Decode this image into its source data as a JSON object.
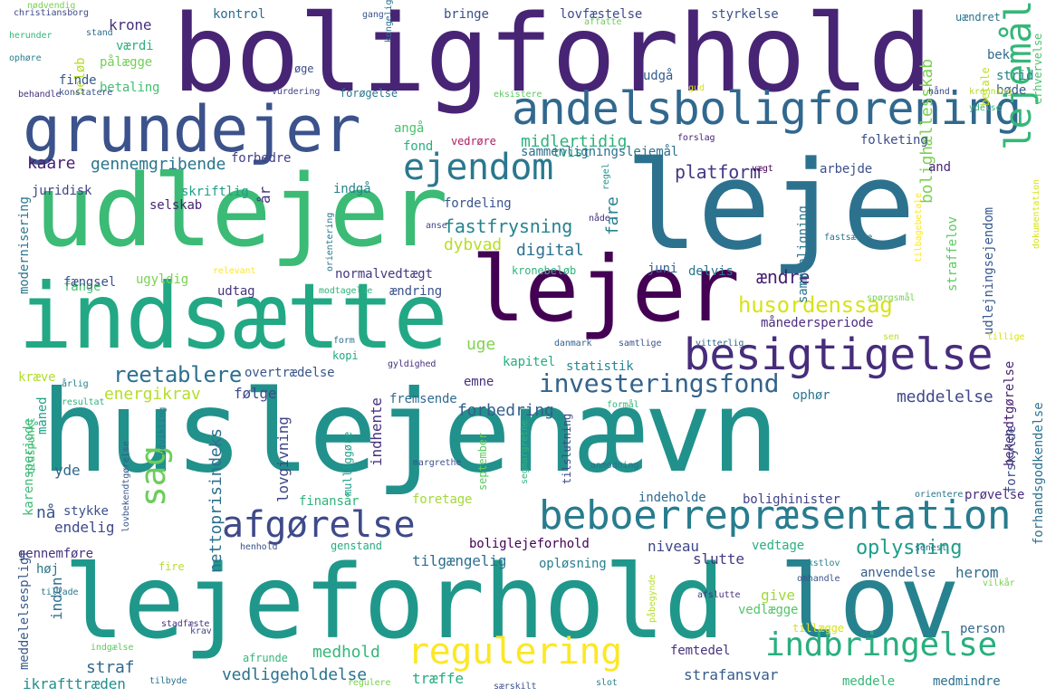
{
  "cloud": {
    "words": [
      {
        "text": "boligforhold",
        "color": "#482475"
      },
      {
        "text": "udlejer",
        "color": "#3bbb75"
      },
      {
        "text": "leje",
        "color": "#2c728e"
      },
      {
        "text": "huslejenævn",
        "color": "#21918c"
      },
      {
        "text": "indsætte",
        "color": "#22a884"
      },
      {
        "text": "lejer",
        "color": "#440154"
      },
      {
        "text": "lejeforhold",
        "color": "#1f988b"
      },
      {
        "text": "lov",
        "color": "#26828e"
      },
      {
        "text": "grundejer",
        "color": "#3b528b"
      },
      {
        "text": "andelsboligforening",
        "color": "#31688e"
      },
      {
        "text": "besigtigelse",
        "color": "#472d7b"
      },
      {
        "text": "beboerrepræsentation",
        "color": "#287c8e"
      },
      {
        "text": "afgørelse",
        "color": "#3e4a89"
      },
      {
        "text": "ejendom",
        "color": "#2a788e"
      },
      {
        "text": "lejemål",
        "color": "#35b779"
      },
      {
        "text": "regulering",
        "color": "#fde725"
      },
      {
        "text": "indbringelse",
        "color": "#29af7f"
      },
      {
        "text": "investeringsfond",
        "color": "#33638d"
      },
      {
        "text": "sag",
        "color": "#6ccd5a"
      },
      {
        "text": "husordenssag",
        "color": "#d8e219"
      },
      {
        "text": "reetablere",
        "color": "#2d708e"
      },
      {
        "text": "bolig",
        "color": "#482878"
      },
      {
        "text": "platform",
        "color": "#443a83"
      },
      {
        "text": "fastfrysning",
        "color": "#25848e"
      },
      {
        "text": "midlertidig",
        "color": "#2db27d"
      },
      {
        "text": "gennemgribende",
        "color": "#2a768e"
      },
      {
        "text": "digital",
        "color": "#2c718e"
      },
      {
        "text": "normalvedtægt",
        "color": "#443983"
      },
      {
        "text": "ændre",
        "color": "#482173"
      },
      {
        "text": "bolighællesskab",
        "color": "#7ad151"
      },
      {
        "text": "oplysning",
        "color": "#1f9e89"
      },
      {
        "text": "meddelelse",
        "color": "#3e4989"
      },
      {
        "text": "forbedring",
        "color": "#355f8d"
      },
      {
        "text": "energikrav",
        "color": "#b5de2b"
      },
      {
        "text": "overtrædelse",
        "color": "#39568c"
      },
      {
        "text": "juridisk",
        "color": "#414487"
      },
      {
        "text": "kaare",
        "color": "#481f70"
      },
      {
        "text": "tvist",
        "color": "#20a386"
      },
      {
        "text": "dybvad",
        "color": "#b8de29"
      },
      {
        "text": "fordeling",
        "color": "#3a548c"
      },
      {
        "text": "kapitel",
        "color": "#25ac82"
      },
      {
        "text": "statistik",
        "color": "#24878e"
      },
      {
        "text": "straf",
        "color": "#31688e"
      },
      {
        "text": "vedligeholdelse",
        "color": "#2c728e"
      },
      {
        "text": "medhold",
        "color": "#35b779"
      },
      {
        "text": "strafansvar",
        "color": "#365c8d"
      },
      {
        "text": "femtedel",
        "color": "#46327e"
      },
      {
        "text": "træffe",
        "color": "#26ad81"
      },
      {
        "text": "ikrafttræden",
        "color": "#218f8d"
      },
      {
        "text": "boliglejeforhold",
        "color": "#440154"
      },
      {
        "text": "tilgængelig",
        "color": "#2e6e8e"
      },
      {
        "text": "opløsning",
        "color": "#277f8e"
      },
      {
        "text": "niveau",
        "color": "#3f4788"
      },
      {
        "text": "vedtage",
        "color": "#2ab07f"
      },
      {
        "text": "slutte",
        "color": "#453781"
      },
      {
        "text": "anvendelse",
        "color": "#365d8d"
      },
      {
        "text": "herom",
        "color": "#2f6c8e"
      },
      {
        "text": "give",
        "color": "#9fda3a"
      },
      {
        "text": "vedlægge",
        "color": "#54c568"
      },
      {
        "text": "tillægge",
        "color": "#d5e21a"
      },
      {
        "text": "person",
        "color": "#31678e"
      },
      {
        "text": "bekendtgørelse",
        "color": "#482071"
      },
      {
        "text": "nettoprisindeks",
        "color": "#2e6f8e"
      },
      {
        "text": "lovgivning",
        "color": "#404688"
      },
      {
        "text": "indhente",
        "color": "#46337f"
      },
      {
        "text": "måned",
        "color": "#1fa287"
      },
      {
        "text": "yde",
        "color": "#31668e"
      },
      {
        "text": "stykke",
        "color": "#3b528b"
      },
      {
        "text": "nå",
        "color": "#39558c"
      },
      {
        "text": "endelig",
        "color": "#3e4a89"
      },
      {
        "text": "gennemføre",
        "color": "#46327e"
      },
      {
        "text": "høj",
        "color": "#2b748e"
      },
      {
        "text": "inden",
        "color": "#2d718e"
      },
      {
        "text": "fange",
        "color": "#4ac16d"
      },
      {
        "text": "følge",
        "color": "#3f4889"
      },
      {
        "text": "emne",
        "color": "#472f7d"
      },
      {
        "text": "ophør",
        "color": "#2b758e"
      },
      {
        "text": "forskylde",
        "color": "#3d4d8a"
      },
      {
        "text": "prøvelse",
        "color": "#472d7b"
      },
      {
        "text": "forhandsgodkendelse",
        "color": "#2c738e"
      },
      {
        "text": "indeholde",
        "color": "#306a8e"
      },
      {
        "text": "bolighinister",
        "color": "#414287"
      },
      {
        "text": "finansår",
        "color": "#2eb37c"
      },
      {
        "text": "foretage",
        "color": "#a2da37"
      },
      {
        "text": "genstand",
        "color": "#27ad81"
      },
      {
        "text": "fremsende",
        "color": "#2f6c8e"
      },
      {
        "text": "fængsel",
        "color": "#3b528b"
      },
      {
        "text": "udtag",
        "color": "#463480"
      },
      {
        "text": "ændring",
        "color": "#3b528b"
      },
      {
        "text": "uge",
        "color": "#7fd34e"
      },
      {
        "text": "kræve",
        "color": "#b0dd2f"
      },
      {
        "text": "karensperiode",
        "color": "#3dbc74"
      },
      {
        "text": "meddelelsespligt",
        "color": "#38588c"
      },
      {
        "text": "modernisering",
        "color": "#2a778e"
      },
      {
        "text": "ugyldig",
        "color": "#7ad151"
      },
      {
        "text": "skriftlig",
        "color": "#1f9e89"
      },
      {
        "text": "selskab",
        "color": "#482475"
      },
      {
        "text": "indgå",
        "color": "#26828e"
      },
      {
        "text": "forbedre",
        "color": "#424086"
      },
      {
        "text": "fond",
        "color": "#2ab07f"
      },
      {
        "text": "vedrøre",
        "color": "#ad1d62"
      },
      {
        "text": "angå",
        "color": "#4ac16d"
      },
      {
        "text": "sammenligningslejemål",
        "color": "#2c718e"
      },
      {
        "text": "folketing",
        "color": "#3c4f8a"
      },
      {
        "text": "arbejde",
        "color": "#3c508b"
      },
      {
        "text": "and",
        "color": "#482878"
      },
      {
        "text": "straffelov",
        "color": "#5ec962"
      },
      {
        "text": "sammenligning",
        "color": "#2b758e"
      },
      {
        "text": "udlejningsejendom",
        "color": "#38598c"
      },
      {
        "text": "månedersperiode",
        "color": "#4e2d7f"
      },
      {
        "text": "juni",
        "color": "#33638d"
      },
      {
        "text": "delvis",
        "color": "#2a768e"
      },
      {
        "text": "kronebeløb",
        "color": "#2eb37c"
      },
      {
        "text": "kontrol",
        "color": "#2f6b8e"
      },
      {
        "text": "bringe",
        "color": "#3c4f8a"
      },
      {
        "text": "lovfæstelse",
        "color": "#3e4a89"
      },
      {
        "text": "styrkelse",
        "color": "#3b528b"
      },
      {
        "text": "krone",
        "color": "#46307e"
      },
      {
        "text": "værdi",
        "color": "#2db27d"
      },
      {
        "text": "pålægge",
        "color": "#73d056"
      },
      {
        "text": "beløb",
        "color": "#b2dd2d"
      },
      {
        "text": "betaling",
        "color": "#44bf70"
      },
      {
        "text": "finde",
        "color": "#38598c"
      },
      {
        "text": "udgå",
        "color": "#365d8d"
      },
      {
        "text": "forøgelse",
        "color": "#2a788e"
      },
      {
        "text": "øge",
        "color": "#3c4f8a"
      },
      {
        "text": "strid",
        "color": "#26828e"
      },
      {
        "text": "bøde",
        "color": "#38598c"
      },
      {
        "text": "bek",
        "color": "#31688e"
      },
      {
        "text": "betale",
        "color": "#bddf26"
      },
      {
        "text": "erhvervelse",
        "color": "#4ac16d"
      },
      {
        "text": "uændret",
        "color": "#2c728e"
      },
      {
        "text": "vurdering",
        "color": "#414487"
      },
      {
        "text": "behandle",
        "color": "#46327e"
      },
      {
        "text": "konstatere",
        "color": "#3b528b"
      },
      {
        "text": "christiansborg",
        "color": "#3e4a89"
      },
      {
        "text": "herunder",
        "color": "#35b779"
      },
      {
        "text": "ophøre",
        "color": "#26828e"
      },
      {
        "text": "nødvendig",
        "color": "#7ad151"
      },
      {
        "text": "stand",
        "color": "#2f6c8e"
      },
      {
        "text": "gang",
        "color": "#3b528b"
      },
      {
        "text": "affatte",
        "color": "#6ccd5a"
      },
      {
        "text": "eksistere",
        "color": "#5ec962"
      },
      {
        "text": "gud",
        "color": "#d8e219"
      },
      {
        "text": "hånd",
        "color": "#3e4a89"
      },
      {
        "text": "kronning",
        "color": "#b5de2b"
      },
      {
        "text": "ydelse",
        "color": "#35b779"
      },
      {
        "text": "dokumentation",
        "color": "#d5e21a"
      },
      {
        "text": "tilbagebetale",
        "color": "#fde725"
      },
      {
        "text": "fastsætte",
        "color": "#2c728e"
      },
      {
        "text": "vægt",
        "color": "#440154"
      },
      {
        "text": "forslag",
        "color": "#482475"
      },
      {
        "text": "anse",
        "color": "#3e4a89"
      },
      {
        "text": "nåde",
        "color": "#46327e"
      },
      {
        "text": "orientering",
        "color": "#2a788e"
      },
      {
        "text": "regel",
        "color": "#21918c"
      },
      {
        "text": "relevant",
        "color": "#fde725"
      },
      {
        "text": "modtagelse",
        "color": "#2eb37c"
      },
      {
        "text": "spørgsmål",
        "color": "#7ad151"
      },
      {
        "text": "tillige",
        "color": "#d8e219"
      },
      {
        "text": "kopi",
        "color": "#22a884"
      },
      {
        "text": "form",
        "color": "#2c728e"
      },
      {
        "text": "danmark",
        "color": "#33638d"
      },
      {
        "text": "samtlige",
        "color": "#3b528b"
      },
      {
        "text": "vitterlig",
        "color": "#31688e"
      },
      {
        "text": "sen",
        "color": "#b5de2b"
      },
      {
        "text": "gyldighed",
        "color": "#46307e"
      },
      {
        "text": "årlig",
        "color": "#26828e"
      },
      {
        "text": "resultat",
        "color": "#2eb37c"
      },
      {
        "text": "formål",
        "color": "#35b779"
      },
      {
        "text": "tidspunkt",
        "color": "#3dbc74"
      },
      {
        "text": "udvikling",
        "color": "#2a788e"
      },
      {
        "text": "lovbekendtgørelse",
        "color": "#38598c"
      },
      {
        "text": "mulliggøre",
        "color": "#1f9e89"
      },
      {
        "text": "margrethe",
        "color": "#3b528b"
      },
      {
        "text": "segmargrethe",
        "color": "#2eb37c"
      },
      {
        "text": "september",
        "color": "#5ec962"
      },
      {
        "text": "tilslutning",
        "color": "#3e4a89"
      },
      {
        "text": "anmodning",
        "color": "#2c728e"
      },
      {
        "text": "orientere",
        "color": "#2a788e"
      },
      {
        "text": "senest",
        "color": "#2c728e"
      },
      {
        "text": "tekstlov",
        "color": "#26828e"
      },
      {
        "text": "omhandle",
        "color": "#3b528b"
      },
      {
        "text": "afslutte",
        "color": "#46327e"
      },
      {
        "text": "påbegynde",
        "color": "#b5de2b"
      },
      {
        "text": "vilkår",
        "color": "#7ad151"
      },
      {
        "text": "stadfæste",
        "color": "#46327e"
      },
      {
        "text": "tillade",
        "color": "#2a788e"
      },
      {
        "text": "indgælse",
        "color": "#5ec962"
      },
      {
        "text": "krav",
        "color": "#3e4a89"
      },
      {
        "text": "afrunde",
        "color": "#35b779"
      },
      {
        "text": "tilbyde",
        "color": "#2c728e"
      },
      {
        "text": "særskilt",
        "color": "#3b528b"
      },
      {
        "text": "regulere",
        "color": "#7ad151"
      },
      {
        "text": "slot",
        "color": "#26828e"
      },
      {
        "text": "meddele",
        "color": "#35b779"
      },
      {
        "text": "medmindre",
        "color": "#2c728e"
      },
      {
        "text": "henhold",
        "color": "#3b528b"
      },
      {
        "text": "fire",
        "color": "#b5de2b"
      },
      {
        "text": "år",
        "color": "#46327e"
      },
      {
        "text": "fare",
        "color": "#26828e"
      },
      {
        "text": "kongelig",
        "color": "#2c728e"
      }
    ]
  }
}
